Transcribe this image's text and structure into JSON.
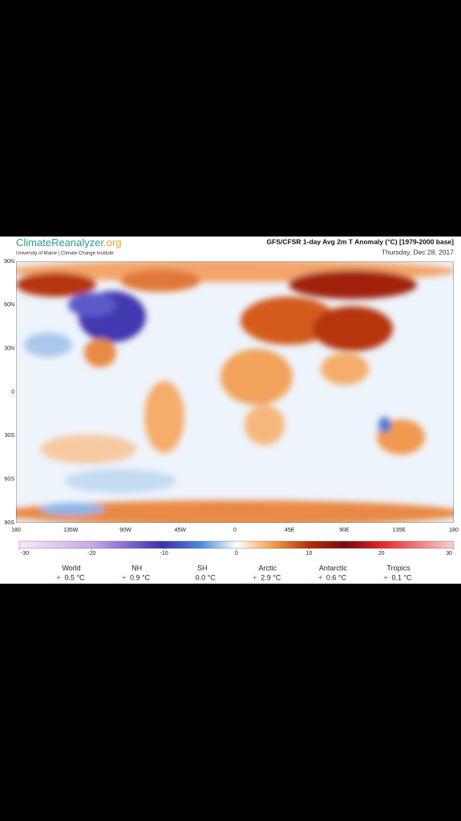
{
  "header": {
    "brand": "ClimateReanalyzer",
    "brand_suffix": ".org",
    "affiliation": "University of Maine | Climate Change Institute",
    "title": "GFS/CFSR 1-day Avg 2m T Anomaly (°C) [1979-2000 base]",
    "date": "Thursday, Dec 28, 2017"
  },
  "map": {
    "lat_labels": [
      "90N",
      "60N",
      "30N",
      "0",
      "30S",
      "60S",
      "90S"
    ],
    "lon_labels": [
      "180",
      "135W",
      "90W",
      "45W",
      "0",
      "45E",
      "90E",
      "135E",
      "180"
    ]
  },
  "colorbar": {
    "lim": [
      -30,
      30
    ],
    "ticks": [
      -30,
      -20,
      -10,
      0,
      10,
      20,
      30
    ]
  },
  "stats": [
    {
      "name": "World",
      "sign": "+",
      "value": "0.5 °C"
    },
    {
      "name": "NH",
      "sign": "+",
      "value": "0.9 °C"
    },
    {
      "name": "SH",
      "value": "0.0 °C"
    },
    {
      "name": "Arctic",
      "sign": "+",
      "value": "2.9 °C"
    },
    {
      "name": "Antarctic",
      "sign": "+",
      "value": "0.6 °C"
    },
    {
      "name": "Tropics",
      "sign": "+",
      "value": "0.1 °C"
    }
  ]
}
